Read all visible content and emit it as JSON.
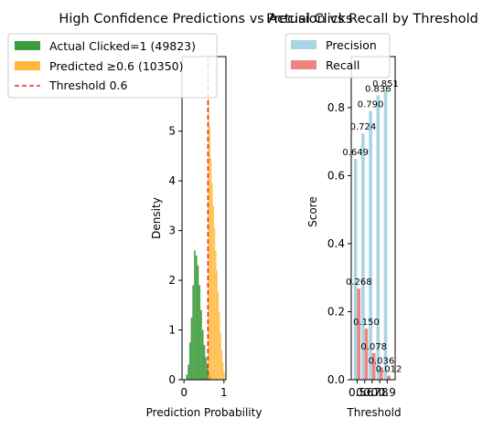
{
  "chart_data": [
    {
      "type": "histogram",
      "title": "High Confidence Predictions vs Actual Clicks",
      "xlabel": "Prediction Probability",
      "ylabel": "Density",
      "xlim": [
        -0.05,
        1.05
      ],
      "ylim": [
        0,
        6.5
      ],
      "xticks": [
        "0",
        "1"
      ],
      "yticks": [
        "0",
        "1",
        "2",
        "3",
        "4",
        "5"
      ],
      "legend": "upper-left",
      "threshold": {
        "label": "Threshold 0.6",
        "value": 0.6,
        "color": "#e8261e"
      },
      "series": [
        {
          "name": "Actual Clicked=1 (49823)",
          "color": "#3d9c3d",
          "bin_width": 0.04,
          "bins": [
            {
              "x": 0.05,
              "y": 0.1
            },
            {
              "x": 0.09,
              "y": 0.3
            },
            {
              "x": 0.13,
              "y": 0.75
            },
            {
              "x": 0.17,
              "y": 1.25
            },
            {
              "x": 0.21,
              "y": 1.9
            },
            {
              "x": 0.25,
              "y": 2.6
            },
            {
              "x": 0.29,
              "y": 2.5
            },
            {
              "x": 0.33,
              "y": 2.3
            },
            {
              "x": 0.37,
              "y": 1.9
            },
            {
              "x": 0.41,
              "y": 1.4
            },
            {
              "x": 0.45,
              "y": 1.0
            },
            {
              "x": 0.49,
              "y": 0.7
            },
            {
              "x": 0.53,
              "y": 0.45
            },
            {
              "x": 0.57,
              "y": 0.3
            },
            {
              "x": 0.61,
              "y": 0.15
            },
            {
              "x": 0.65,
              "y": 0.08
            }
          ]
        },
        {
          "name": "Predicted ≥0.6 (10350)",
          "color": "#ffb83a",
          "bin_width": 0.03,
          "bins": [
            {
              "x": 0.6,
              "y": 5.75
            },
            {
              "x": 0.63,
              "y": 5.1
            },
            {
              "x": 0.66,
              "y": 4.45
            },
            {
              "x": 0.69,
              "y": 3.95
            },
            {
              "x": 0.72,
              "y": 3.5
            },
            {
              "x": 0.75,
              "y": 3.05
            },
            {
              "x": 0.78,
              "y": 2.6
            },
            {
              "x": 0.81,
              "y": 2.2
            },
            {
              "x": 0.84,
              "y": 1.75
            },
            {
              "x": 0.87,
              "y": 1.35
            },
            {
              "x": 0.9,
              "y": 0.95
            },
            {
              "x": 0.93,
              "y": 0.6
            },
            {
              "x": 0.96,
              "y": 0.35
            },
            {
              "x": 0.99,
              "y": 0.15
            }
          ]
        }
      ]
    },
    {
      "type": "bar",
      "title": "Precision vs Recall by Threshold",
      "xlabel": "Threshold",
      "ylabel": "Score",
      "ylim": [
        0,
        0.95
      ],
      "yticks": [
        "0.0",
        "0.2",
        "0.4",
        "0.6",
        "0.8"
      ],
      "categories": [
        "0.5",
        "0.6",
        "0.7",
        "0.8",
        "0.9"
      ],
      "legend": "upper-left",
      "series": [
        {
          "name": "Precision",
          "color": "#a9d4e5",
          "values": [
            0.649,
            0.724,
            0.79,
            0.836,
            0.851
          ],
          "labels": [
            "0.649",
            "0.724",
            "0.790",
            "0.836",
            "0.851"
          ]
        },
        {
          "name": "Recall",
          "color": "#ee8580",
          "values": [
            0.268,
            0.15,
            0.078,
            0.036,
            0.012
          ],
          "labels": [
            "0.268",
            "0.150",
            "0.078",
            "0.036",
            "0.012"
          ]
        }
      ]
    }
  ]
}
